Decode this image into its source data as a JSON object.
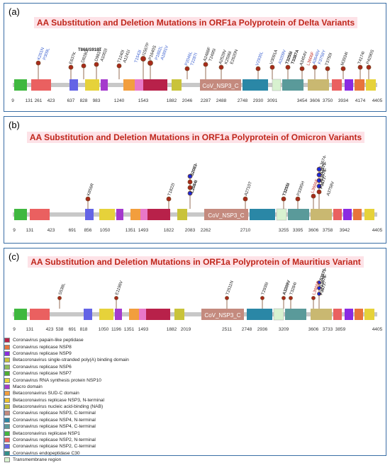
{
  "panels": [
    {
      "letter": "(a)",
      "title": "AA Substitution and Deletion Mutations in ORF1a Polyprotein of Delta Variants",
      "ticks": [
        "9",
        "131",
        "261",
        "423",
        "637",
        "828",
        "983",
        "1240",
        "1543",
        "1882",
        "2046",
        "2287",
        "2488",
        "2748",
        "2930",
        "3091",
        "3454",
        "3606",
        "3750",
        "3934",
        "4174",
        "4405"
      ],
      "domain_label": "CoV_NSP3_C",
      "mutations": [
        "K261N",
        "P309L",
        "E637K",
        "T866/S918T",
        "D828G",
        "D983Y",
        "A1002I",
        "T1240I",
        "A1241I",
        "T1543I",
        "I1567P",
        "P1640S",
        "P1882L",
        "A1891V",
        "P2046L",
        "T2287I",
        "A2488F",
        "T2495I",
        "A2529V",
        "K2596I",
        "E2620N",
        "V2930L",
        "V3091A",
        "A3209V",
        "T3255I",
        "T3387A",
        "A3454V",
        "L3606F",
        "A3646V",
        "F3758Y",
        "T3750I",
        "M3934I",
        "T4174I",
        "P4290S"
      ]
    },
    {
      "letter": "(b)",
      "title": "AA Substitution and Deletion Mutations in ORF1a Polyprotein of Omicron Variants",
      "ticks": [
        "9",
        "131",
        "423",
        "691",
        "856",
        "1050",
        "1351",
        "1493",
        "1822",
        "2083",
        "2262",
        "2710",
        "3255",
        "3395",
        "3606",
        "3758",
        "3942",
        "4405"
      ],
      "domain_label": "CoV_NSP3_C",
      "mutations": [
        "K856R",
        "T1822I",
        "S2083-",
        "L2084I",
        "A2710T",
        "T3255I",
        "P3395H",
        "L3606F",
        "L3674-",
        "S3675-",
        "G3676-",
        "F3677-",
        "A3758V"
      ]
    },
    {
      "letter": "(c)",
      "title": "AA Substitution and Deletion Mutations in ORF1a Polyprotein of Mauritius Variant",
      "ticks": [
        "9",
        "131",
        "423",
        "538",
        "691",
        "818",
        "1050",
        "1196",
        "1351",
        "1493",
        "1882",
        "2019",
        "2511",
        "2748",
        "2936",
        "3209",
        "3606",
        "3733",
        "3859",
        "4405"
      ],
      "domain_label": "CoV_NSP3_C",
      "mutations": [
        "S538L",
        "E1196V",
        "T2511N",
        "T2936I",
        "A3209V",
        "T3284I",
        "L3606F",
        "S3675-",
        "G3676-",
        "F3677-"
      ]
    }
  ],
  "legend": [
    {
      "label": "Coronavirus papain-like peptidase",
      "color": "#b8214a"
    },
    {
      "label": "Coronavirus replicase NSP8",
      "color": "#e8743b"
    },
    {
      "label": "Coronavirus replicase NSP9",
      "color": "#8a2be2"
    },
    {
      "label": "Betacoronavirus single-stranded poly(A) binding domain",
      "color": "#c9c33a"
    },
    {
      "label": "Coronavirus replicase NSP6",
      "color": "#8fbf5a"
    },
    {
      "label": "Coronavirus replicase NSP7",
      "color": "#4caf2f"
    },
    {
      "label": "Coronavirus RNA synthesis protein NSP10",
      "color": "#e6d23a"
    },
    {
      "label": "Macro domain",
      "color": "#a53acd"
    },
    {
      "label": "Betacoronavirus SUD-C domain",
      "color": "#f29e3d"
    },
    {
      "label": "Betacoronavirus replicase NSP3, N-terminal",
      "color": "#eec12e"
    },
    {
      "label": "Betacoronavirus nucleic acid-binding (NAB)",
      "color": "#b9b93a"
    },
    {
      "label": "Coronavirus replicase NSP3, C-terminal",
      "color": "#c48a7e"
    },
    {
      "label": "Coronavirus replicase NSP4, N-terminal",
      "color": "#2a87a6"
    },
    {
      "label": "Coronavirus replicase NSP4, C-terminal",
      "color": "#5a9a9a"
    },
    {
      "label": "Betacoronavirus replicase NSP1",
      "color": "#3fb83f"
    },
    {
      "label": "Coronavirus replicase NSP2, N-terminal",
      "color": "#ea6060"
    },
    {
      "label": "Coronavirus replicase NSP2, C-terminal",
      "color": "#6464e6"
    },
    {
      "label": "Coronavirus endopeptidase C30",
      "color": "#2f8f8a"
    },
    {
      "label": "Transmembrane region",
      "color": "#d8f2d0"
    }
  ]
}
